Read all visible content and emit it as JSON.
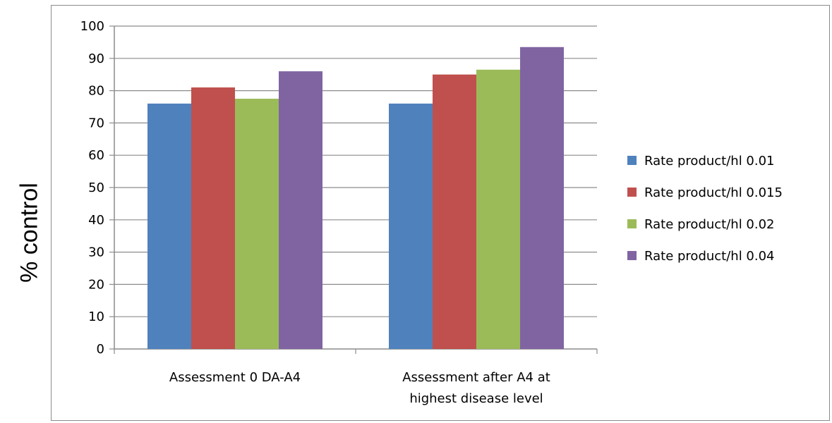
{
  "chart_data": {
    "type": "bar",
    "ylabel": "% control",
    "xlabel": "",
    "ylim": [
      0,
      100
    ],
    "ytick_step": 10,
    "categories": [
      [
        "Assessment 0 DA-A4"
      ],
      [
        "Assessment after A4 at",
        "highest disease level"
      ]
    ],
    "series": [
      {
        "name": "Rate product/hl 0.01",
        "color": "#4f81bd",
        "values": [
          76,
          76
        ]
      },
      {
        "name": "Rate product/hl 0.015",
        "color": "#c0504d",
        "values": [
          81,
          85
        ]
      },
      {
        "name": "Rate product/hl 0.02",
        "color": "#9bbb59",
        "values": [
          77.5,
          86.5
        ]
      },
      {
        "name": "Rate product/hl 0.04",
        "color": "#8064a2",
        "values": [
          86,
          93.5
        ]
      }
    ],
    "grid": true,
    "legend_position": "right"
  }
}
